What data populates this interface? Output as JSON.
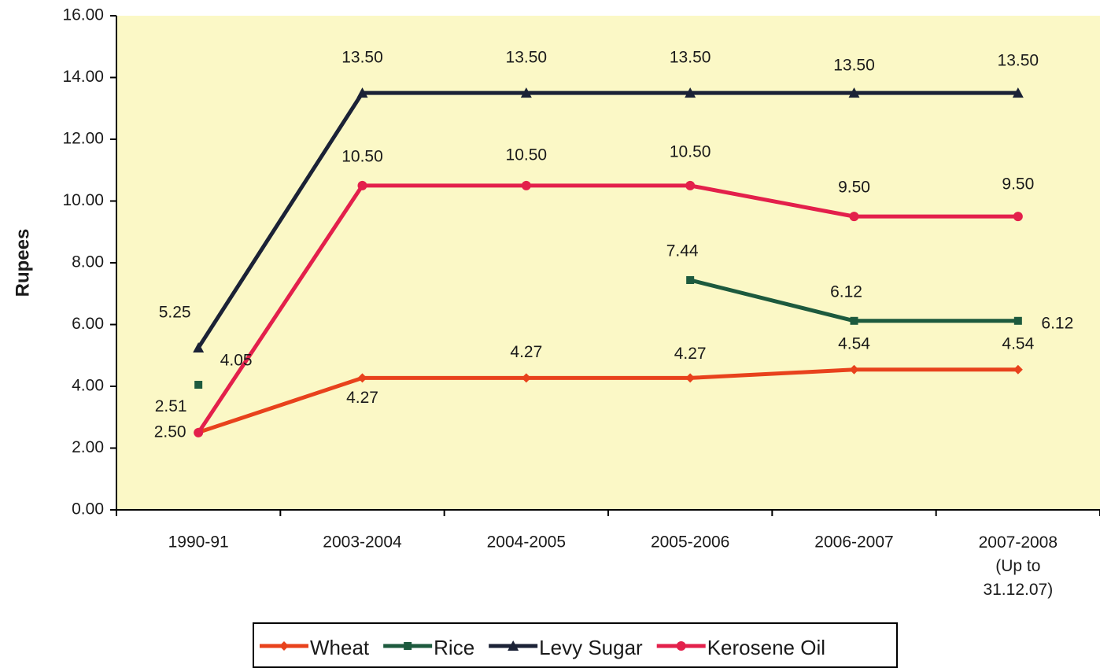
{
  "chart_data": {
    "type": "line",
    "y_axis_label": "Rupees",
    "categories": [
      "1990-91",
      "2003-2004",
      "2004-2005",
      "2005-2006",
      "2006-2007",
      "2007-2008\n(Up to\n31.12.07)"
    ],
    "series": [
      {
        "name": "Wheat",
        "color": "#e8421c",
        "marker": "diamond",
        "values": [
          2.51,
          4.27,
          4.27,
          4.27,
          4.54,
          4.54
        ],
        "value_labels": [
          "2.51",
          "4.27",
          "4.27",
          "4.27",
          "4.54",
          "4.54"
        ]
      },
      {
        "name": "Rice",
        "color": "#1d5a3e",
        "marker": "square",
        "values": [
          4.05,
          null,
          null,
          7.44,
          6.12,
          6.12
        ],
        "value_labels": [
          "4.05",
          null,
          null,
          "7.44",
          "6.12",
          "6.12"
        ]
      },
      {
        "name": "Levy Sugar",
        "color": "#1b2236",
        "marker": "triangle",
        "values": [
          5.25,
          13.5,
          13.5,
          13.5,
          13.5,
          13.5
        ],
        "value_labels": [
          "5.25",
          "13.50",
          "13.50",
          "13.50",
          "13.50",
          "13.50"
        ]
      },
      {
        "name": "Kerosene Oil",
        "color": "#e3204b",
        "marker": "circle",
        "values": [
          2.5,
          10.5,
          10.5,
          10.5,
          9.5,
          9.5
        ],
        "value_labels": [
          "2.50",
          "10.50",
          "10.50",
          "10.50",
          "9.50",
          "9.50"
        ]
      }
    ],
    "ylim": [
      0,
      16
    ],
    "yticks": [
      {
        "value": 0,
        "label": "0.00"
      },
      {
        "value": 2,
        "label": "2.00"
      },
      {
        "value": 4,
        "label": "4.00"
      },
      {
        "value": 6,
        "label": "6.00"
      },
      {
        "value": 8,
        "label": "8.00"
      },
      {
        "value": 10,
        "label": "10.00"
      },
      {
        "value": 12,
        "label": "12.00"
      },
      {
        "value": 14,
        "label": "14.00"
      },
      {
        "value": 16,
        "label": "16.00"
      }
    ],
    "background": "#fbf8c6",
    "legend": "bottom"
  }
}
